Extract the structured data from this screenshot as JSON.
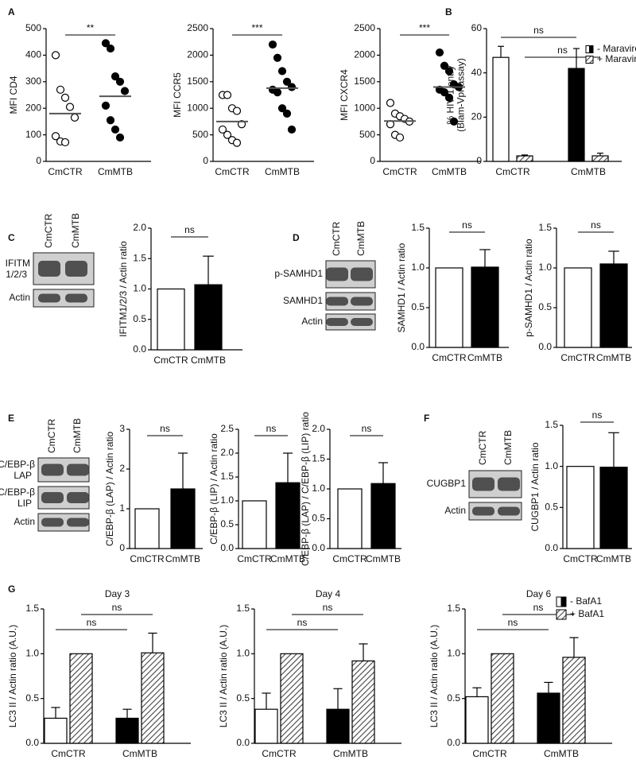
{
  "figure": {
    "panel_labels": [
      "A",
      "B",
      "C",
      "D",
      "E",
      "F",
      "G"
    ],
    "blots": [
      {
        "lanes": [
          "CmCTR",
          "CmMTB"
        ],
        "rows": [
          {
            "label": "IFITM",
            "sub": "1/2/3"
          },
          {
            "label": "Actin"
          }
        ]
      },
      {
        "lanes": [
          "CmCTR",
          "CmMTB"
        ],
        "rows": [
          {
            "label": "p-SAMHD1"
          },
          {
            "label": "SAMHD1"
          },
          {
            "label": "Actin"
          }
        ]
      },
      {
        "lanes": [
          "CmCTR",
          "CmMTB"
        ],
        "rows": [
          {
            "label": "C/EBP-β",
            "sub": "LAP"
          },
          {
            "label": "C/EBP-β",
            "sub": "LIP"
          },
          {
            "label": "Actin"
          }
        ]
      },
      {
        "lanes": [
          "CmCTR",
          "CmMTB"
        ],
        "rows": [
          {
            "label": "CUGBP1"
          },
          {
            "label": "Actin"
          }
        ]
      }
    ]
  },
  "chart_data": [
    {
      "type": "dot",
      "ylabel": [
        "MFI CD4"
      ],
      "categories": [
        "CmCTR",
        "CmMTB"
      ],
      "groups": [
        {
          "values": [
            400,
            270,
            240,
            205,
            165,
            95,
            75,
            72
          ],
          "mean": 180,
          "fill": "#ffffff"
        },
        {
          "values": [
            445,
            425,
            320,
            300,
            265,
            210,
            155,
            120,
            90
          ],
          "mean": 245,
          "fill": "#000000"
        }
      ],
      "ylim": [
        0,
        500
      ],
      "yticks": [
        0,
        100,
        200,
        300,
        400,
        500
      ],
      "annotations": [
        "**"
      ]
    },
    {
      "type": "dot",
      "ylabel": [
        "MFI CCR5"
      ],
      "categories": [
        "CmCTR",
        "CmMTB"
      ],
      "groups": [
        {
          "values": [
            1250,
            1250,
            1000,
            950,
            700,
            600,
            500,
            400,
            350
          ],
          "mean": 750,
          "fill": "#ffffff"
        },
        {
          "values": [
            2200,
            1950,
            1700,
            1500,
            1400,
            1350,
            1300,
            1000,
            900,
            600
          ],
          "mean": 1380,
          "fill": "#000000"
        }
      ],
      "ylim": [
        0,
        2500
      ],
      "yticks": [
        0,
        500,
        1000,
        1500,
        2000,
        2500
      ],
      "annotations": [
        "***"
      ]
    },
    {
      "type": "dot",
      "ylabel": [
        "MFI CXCR4"
      ],
      "categories": [
        "CmCTR",
        "CmMTB"
      ],
      "groups": [
        {
          "values": [
            1100,
            900,
            850,
            800,
            750,
            700,
            500,
            450
          ],
          "mean": 760,
          "fill": "#ffffff"
        },
        {
          "values": [
            2050,
            1800,
            1700,
            1450,
            1400,
            1350,
            1300,
            1200,
            750
          ],
          "mean": 1400,
          "fill": "#000000"
        }
      ],
      "ylim": [
        0,
        2500
      ],
      "yticks": [
        0,
        500,
        1000,
        1500,
        2000,
        2500
      ],
      "annotations": [
        "***"
      ]
    },
    {
      "type": "bar",
      "ylabel": [
        "% HIV-1 entry",
        "(Blam-Vpr assay)"
      ],
      "categories": [
        "CmCTR",
        "CmMTB"
      ],
      "series": [
        {
          "name": "- Maraviroc",
          "colors": [
            "#ffffff",
            "#000000"
          ],
          "values": [
            47,
            42
          ],
          "errors": [
            5,
            9
          ]
        },
        {
          "name": "+ Maraviroc",
          "color": "#444444",
          "hatch": true,
          "values": [
            2.5,
            2.5
          ],
          "errors": [
            0.4,
            1.2
          ]
        }
      ],
      "ylim": [
        0,
        60
      ],
      "yticks": [
        0,
        20,
        40,
        60
      ],
      "legend": "upper right",
      "annotations": [
        "ns",
        "ns"
      ]
    },
    {
      "type": "bar",
      "ylabel": [
        "IFITM1/2/3 / Actin ratio"
      ],
      "categories": [
        "CmCTR",
        "CmMTB"
      ],
      "series": [
        {
          "colors": [
            "#ffffff",
            "#000000"
          ],
          "values": [
            1.0,
            1.07
          ],
          "errors": [
            null,
            0.47
          ]
        }
      ],
      "ylim": [
        0,
        2
      ],
      "yticks": [
        {
          "value": 0,
          "label": "0.0"
        },
        0.5,
        {
          "value": 1,
          "label": "1.0"
        },
        1.5,
        {
          "value": 2,
          "label": "2.0"
        }
      ],
      "annotations": [
        "ns"
      ]
    },
    {
      "type": "bar",
      "ylabel": [
        "SAMHD1 / Actin ratio"
      ],
      "categories": [
        "CmCTR",
        "CmMTB"
      ],
      "series": [
        {
          "colors": [
            "#ffffff",
            "#000000"
          ],
          "values": [
            1.0,
            1.01
          ],
          "errors": [
            null,
            0.22
          ]
        }
      ],
      "ylim": [
        0,
        1.5
      ],
      "yticks": [
        {
          "value": 0,
          "label": "0.0"
        },
        0.5,
        {
          "value": 1,
          "label": "1.0"
        },
        1.5
      ],
      "annotations": [
        "ns"
      ]
    },
    {
      "type": "bar",
      "ylabel": [
        "p-SAMHD1 / Actin ratio"
      ],
      "categories": [
        "CmCTR",
        "CmMTB"
      ],
      "series": [
        {
          "colors": [
            "#ffffff",
            "#000000"
          ],
          "values": [
            1.0,
            1.05
          ],
          "errors": [
            null,
            0.16
          ]
        }
      ],
      "ylim": [
        0,
        1.5
      ],
      "yticks": [
        {
          "value": 0,
          "label": "0.0"
        },
        0.5,
        {
          "value": 1,
          "label": "1.0"
        },
        1.5
      ],
      "annotations": [
        "ns"
      ]
    },
    {
      "type": "bar",
      "ylabel": [
        "C/EBP-β (LAP) / Actin ratio"
      ],
      "categories": [
        "CmCTR",
        "CmMTB"
      ],
      "series": [
        {
          "colors": [
            "#ffffff",
            "#000000"
          ],
          "values": [
            1.0,
            1.5
          ],
          "errors": [
            null,
            0.9
          ]
        }
      ],
      "ylim": [
        0,
        3
      ],
      "yticks": [
        0,
        1,
        2,
        3
      ],
      "annotations": [
        "ns"
      ]
    },
    {
      "type": "bar",
      "ylabel": [
        "C/EBP-β (LIP) / Actin ratio"
      ],
      "categories": [
        "CmCTR",
        "CmMTB"
      ],
      "series": [
        {
          "colors": [
            "#ffffff",
            "#000000"
          ],
          "values": [
            1.0,
            1.38
          ],
          "errors": [
            null,
            0.62
          ]
        }
      ],
      "ylim": [
        0,
        2.5
      ],
      "yticks": [
        {
          "value": 0,
          "label": "0.0"
        },
        0.5,
        {
          "value": 1,
          "label": "1.0"
        },
        1.5,
        {
          "value": 2,
          "label": "2.0"
        },
        2.5
      ],
      "annotations": [
        "ns"
      ]
    },
    {
      "type": "bar",
      "ylabel": [
        "C/EBP-β (LAP) / C/EBP-β (LIP) ratio"
      ],
      "categories": [
        "CmCTR",
        "CmMTB"
      ],
      "series": [
        {
          "colors": [
            "#ffffff",
            "#000000"
          ],
          "values": [
            1.0,
            1.09
          ],
          "errors": [
            null,
            0.35
          ]
        }
      ],
      "ylim": [
        0,
        2
      ],
      "yticks": [
        {
          "value": 0,
          "label": "0.0"
        },
        0.5,
        {
          "value": 1,
          "label": "1.0"
        },
        1.5,
        {
          "value": 2,
          "label": "2.0"
        }
      ],
      "annotations": [
        "ns"
      ]
    },
    {
      "type": "bar",
      "ylabel": [
        "CUGBP1 / Actin ratio"
      ],
      "categories": [
        "CmCTR",
        "CmMTB"
      ],
      "series": [
        {
          "colors": [
            "#ffffff",
            "#000000"
          ],
          "values": [
            1.0,
            0.99
          ],
          "errors": [
            null,
            0.42
          ]
        }
      ],
      "ylim": [
        0,
        1.5
      ],
      "yticks": [
        {
          "value": 0,
          "label": "0.0"
        },
        0.5,
        {
          "value": 1,
          "label": "1.0"
        },
        1.5
      ],
      "annotations": [
        "ns"
      ]
    },
    {
      "type": "bar",
      "title": "Day 3",
      "ylabel": [
        "LC3 II / Actin ratio (A.U.)"
      ],
      "categories": [
        "CmCTR",
        "CmMTB"
      ],
      "series": [
        {
          "name": "- BafA1",
          "colors": [
            "#ffffff",
            "#000000"
          ],
          "values": [
            0.28,
            0.28
          ],
          "errors": [
            0.12,
            0.1
          ]
        },
        {
          "name": "+ BafA1",
          "color": "#444444",
          "hatch": true,
          "values": [
            1.0,
            1.01
          ],
          "errors": [
            null,
            0.22
          ]
        }
      ],
      "ylim": [
        0,
        1.5
      ],
      "yticks": [
        {
          "value": 0,
          "label": "0.0"
        },
        0.5,
        {
          "value": 1,
          "label": "1.0"
        },
        1.5
      ],
      "annotations": [
        "ns",
        "ns"
      ]
    },
    {
      "type": "bar",
      "title": "Day 4",
      "ylabel": [
        "LC3 II / Actin ratio (A.U.)"
      ],
      "categories": [
        "CmCTR",
        "CmMTB"
      ],
      "series": [
        {
          "name": "- BafA1",
          "colors": [
            "#ffffff",
            "#000000"
          ],
          "values": [
            0.38,
            0.38
          ],
          "errors": [
            0.18,
            0.23
          ]
        },
        {
          "name": "+ BafA1",
          "color": "#444444",
          "hatch": true,
          "values": [
            1.0,
            0.92
          ],
          "errors": [
            null,
            0.19
          ]
        }
      ],
      "ylim": [
        0,
        1.5
      ],
      "yticks": [
        {
          "value": 0,
          "label": "0.0"
        },
        0.5,
        {
          "value": 1,
          "label": "1.0"
        },
        1.5
      ],
      "annotations": [
        "ns",
        "ns"
      ]
    },
    {
      "type": "bar",
      "title": "Day 6",
      "ylabel": [
        "LC3 II / Actin ratio (A.U.)"
      ],
      "categories": [
        "CmCTR",
        "CmMTB"
      ],
      "series": [
        {
          "name": "- BafA1",
          "colors": [
            "#ffffff",
            "#000000"
          ],
          "values": [
            0.52,
            0.56
          ],
          "errors": [
            0.1,
            0.12
          ]
        },
        {
          "name": "+ BafA1",
          "color": "#444444",
          "hatch": true,
          "values": [
            1.0,
            0.96
          ],
          "errors": [
            null,
            0.22
          ]
        }
      ],
      "ylim": [
        0,
        1.5
      ],
      "yticks": [
        {
          "value": 0,
          "label": "0.0"
        },
        0.5,
        {
          "value": 1,
          "label": "1.0"
        },
        1.5
      ],
      "legend": "upper right",
      "annotations": [
        "ns",
        "ns"
      ]
    }
  ]
}
